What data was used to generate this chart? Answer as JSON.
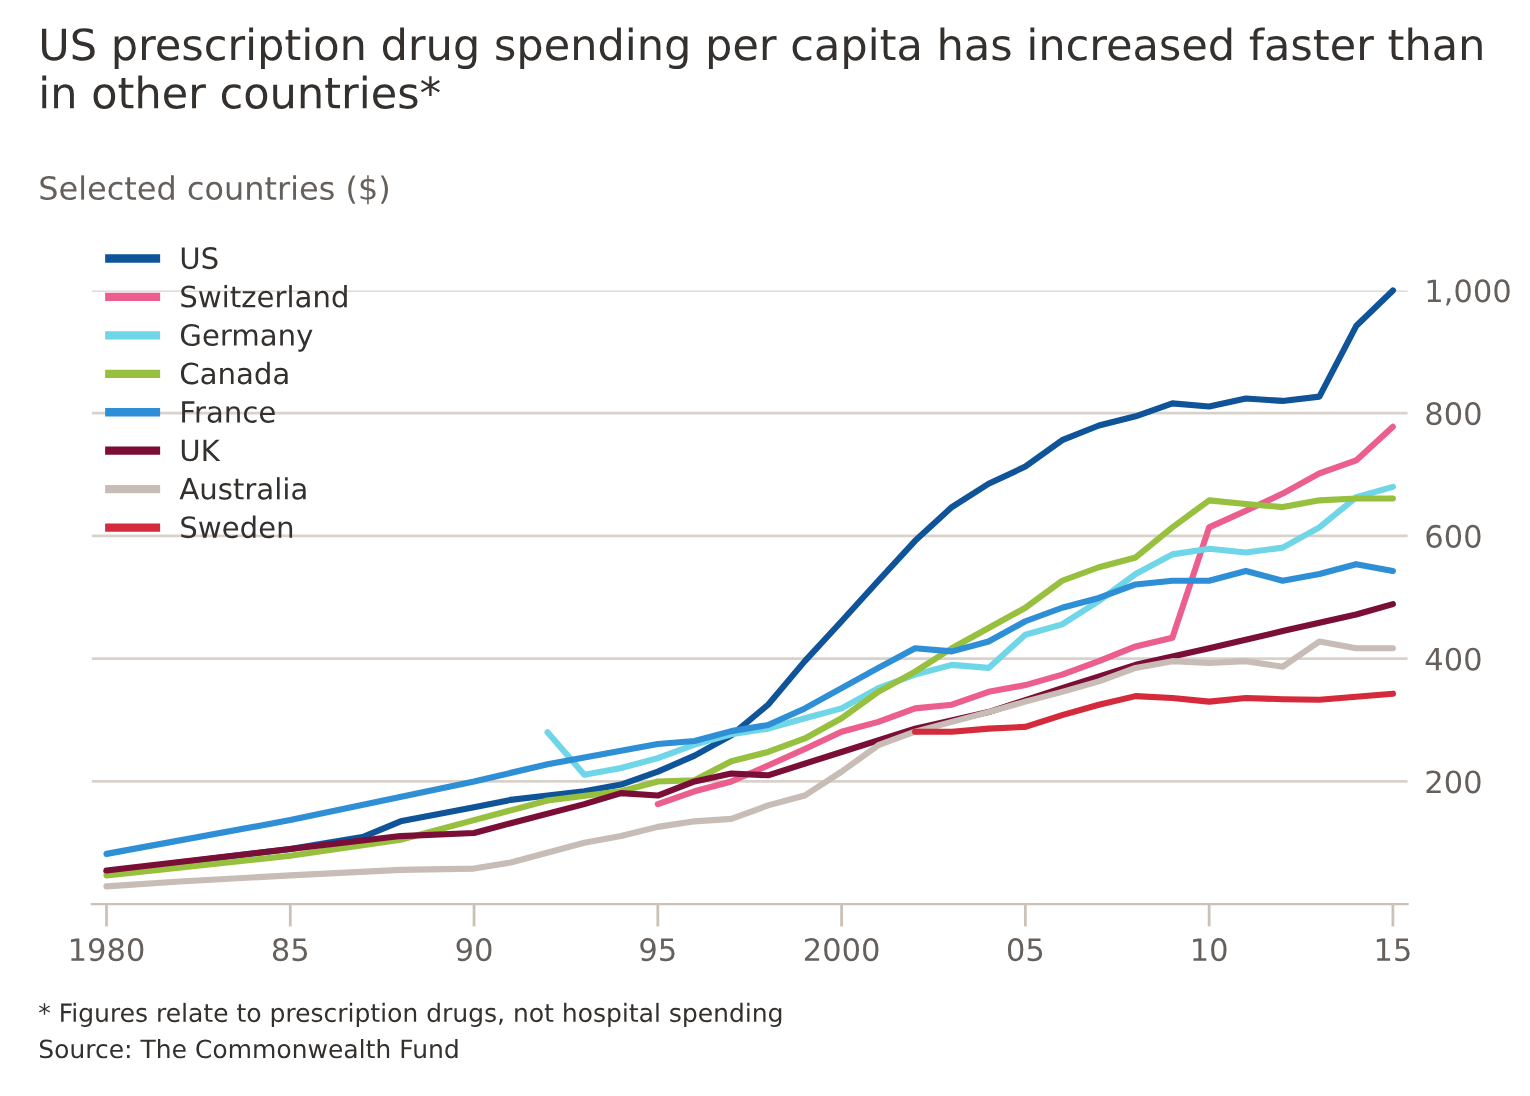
{
  "chart_data": {
    "type": "line",
    "title": "US prescription drug spending per capita has increased faster than in other countries*",
    "subtitle": "Selected countries ($)",
    "annotations": [
      "* Figures relate to prescription drugs, not hospital spending",
      "Source: The Commonwealth Fund"
    ],
    "xlim": [
      1979.6,
      2015.4
    ],
    "xticks": [
      {
        "value": 1980,
        "label": "1980"
      },
      {
        "value": 1985,
        "label": "85"
      },
      {
        "value": 1990,
        "label": "90"
      },
      {
        "value": 1995,
        "label": "95"
      },
      {
        "value": 2000,
        "label": "2000"
      },
      {
        "value": 2005,
        "label": "05"
      },
      {
        "value": 2010,
        "label": "10"
      },
      {
        "value": 2015,
        "label": "15"
      }
    ],
    "ylim": [
      0,
      1000
    ],
    "yticks": [
      200,
      400,
      600,
      800,
      {
        "value": 1000,
        "label": "1,000"
      }
    ],
    "grid": "y",
    "legend": "top left",
    "line_style": "solid",
    "marker": "none",
    "series": [
      {
        "name": "US",
        "color": "#0f5499",
        "x": [
          1980,
          1982,
          1985,
          1987,
          1988,
          1990,
          1991,
          1992,
          1993,
          1994,
          1995,
          1996,
          1997,
          1998,
          1999,
          2000,
          2001,
          2002,
          2003,
          2004,
          2005,
          2006,
          2007,
          2008,
          2009,
          2010,
          2011,
          2012,
          2013,
          2014,
          2015
        ],
        "values": [
          53,
          68,
          90,
          110,
          135,
          158,
          170,
          177,
          184,
          195,
          216,
          242,
          275,
          325,
          396,
          461,
          527,
          592,
          647,
          685,
          713,
          756,
          780,
          795,
          816,
          811,
          824,
          820,
          827,
          942,
          1000
        ]
      },
      {
        "name": "Switzerland",
        "color": "#eb5e8d",
        "x": [
          1995,
          1996,
          1997,
          1998,
          1999,
          2000,
          2001,
          2002,
          2003,
          2004,
          2005,
          2006,
          2007,
          2008,
          2009,
          2010,
          2011,
          2012,
          2013,
          2014,
          2015
        ],
        "values": [
          163,
          184,
          200,
          226,
          253,
          281,
          297,
          319,
          325,
          346,
          357,
          374,
          396,
          420,
          434,
          614,
          641,
          669,
          702,
          723,
          778
        ]
      },
      {
        "name": "Germany",
        "color": "#6fd6e8",
        "x": [
          1992,
          1993,
          1994,
          1995,
          1996,
          1997,
          1998,
          1999,
          2000,
          2001,
          2002,
          2003,
          2004,
          2005,
          2006,
          2007,
          2008,
          2009,
          2010,
          2011,
          2012,
          2013,
          2014,
          2015
        ],
        "values": [
          280,
          211,
          222,
          238,
          260,
          277,
          286,
          303,
          319,
          352,
          374,
          390,
          385,
          439,
          456,
          494,
          538,
          570,
          579,
          573,
          581,
          614,
          663,
          680
        ]
      },
      {
        "name": "Canada",
        "color": "#96c03e",
        "x": [
          1980,
          1985,
          1988,
          1990,
          1992,
          1994,
          1995,
          1996,
          1997,
          1998,
          1999,
          2000,
          2001,
          2002,
          2003,
          2004,
          2005,
          2006,
          2007,
          2008,
          2009,
          2010,
          2011,
          2012,
          2013,
          2014,
          2015
        ],
        "values": [
          47,
          79,
          105,
          137,
          169,
          184,
          200,
          202,
          233,
          248,
          270,
          303,
          346,
          379,
          417,
          450,
          483,
          527,
          549,
          565,
          614,
          658,
          652,
          647,
          658,
          661,
          661
        ]
      },
      {
        "name": "France",
        "color": "#2e8fd6",
        "x": [
          1980,
          1985,
          1990,
          1992,
          1993,
          1994,
          1995,
          1996,
          1997,
          1998,
          1999,
          2000,
          2001,
          2002,
          2003,
          2004,
          2005,
          2006,
          2007,
          2008,
          2009,
          2010,
          2011,
          2012,
          2013,
          2014,
          2015
        ],
        "values": [
          82,
          137,
          200,
          228,
          239,
          250,
          261,
          266,
          282,
          292,
          319,
          352,
          385,
          417,
          412,
          428,
          461,
          483,
          499,
          521,
          527,
          527,
          543,
          527,
          538,
          554,
          543
        ]
      },
      {
        "name": "UK",
        "color": "#7a0e36",
        "x": [
          1980,
          1985,
          1988,
          1990,
          1991,
          1993,
          1994,
          1995,
          1996,
          1997,
          1998,
          2000,
          2002,
          2004,
          2006,
          2008,
          2010,
          2012,
          2014,
          2015
        ],
        "values": [
          55,
          90,
          111,
          116,
          132,
          163,
          181,
          177,
          200,
          213,
          210,
          248,
          286,
          313,
          352,
          390,
          417,
          445,
          472,
          489
        ]
      },
      {
        "name": "Australia",
        "color": "#c8bcb6",
        "x": [
          1980,
          1982,
          1985,
          1988,
          1990,
          1991,
          1993,
          1994,
          1995,
          1996,
          1997,
          1998,
          1999,
          2000,
          2001,
          2002,
          2003,
          2004,
          2005,
          2006,
          2007,
          2008,
          2009,
          2010,
          2011,
          2012,
          2013,
          2014,
          2015
        ],
        "values": [
          29,
          37,
          47,
          56,
          58,
          68,
          100,
          111,
          126,
          135,
          139,
          161,
          177,
          216,
          259,
          281,
          297,
          313,
          330,
          346,
          363,
          385,
          396,
          393,
          396,
          387,
          428,
          417,
          417
        ]
      },
      {
        "name": "Sweden",
        "color": "#d42a3c",
        "x": [
          2002,
          2003,
          2004,
          2005,
          2006,
          2007,
          2008,
          2009,
          2010,
          2011,
          2012,
          2013,
          2014,
          2015
        ],
        "values": [
          281,
          281,
          286,
          289,
          308,
          325,
          339,
          336,
          330,
          336,
          334,
          333,
          338,
          343
        ]
      }
    ]
  }
}
